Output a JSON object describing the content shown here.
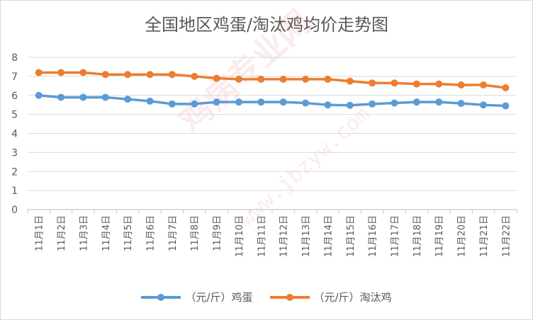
{
  "chart_data": {
    "type": "line",
    "title": "全国地区鸡蛋/淘汰鸡均价走势图",
    "categories": [
      "11月1日",
      "11月2日",
      "11月3日",
      "11月4日",
      "11月5日",
      "11月6日",
      "11月7日",
      "11月8日",
      "11月9日",
      "11月10日",
      "11月11日",
      "11月12日",
      "11月13日",
      "11月14日",
      "11月15日",
      "11月16日",
      "11月17日",
      "11月18日",
      "11月19日",
      "11月20日",
      "11月21日",
      "11月22日"
    ],
    "series": [
      {
        "name": "（元/斤）鸡蛋",
        "color": "#5b9bd5",
        "values": [
          6.0,
          5.9,
          5.9,
          5.9,
          5.8,
          5.7,
          5.55,
          5.55,
          5.65,
          5.65,
          5.65,
          5.65,
          5.6,
          5.5,
          5.48,
          5.55,
          5.6,
          5.65,
          5.65,
          5.58,
          5.5,
          5.45
        ]
      },
      {
        "name": "（元/斤）淘汰鸡",
        "color": "#ed7d31",
        "values": [
          7.2,
          7.2,
          7.2,
          7.1,
          7.1,
          7.1,
          7.1,
          7.0,
          6.9,
          6.85,
          6.85,
          6.85,
          6.85,
          6.85,
          6.75,
          6.65,
          6.65,
          6.6,
          6.6,
          6.55,
          6.55,
          6.4
        ]
      }
    ],
    "ylim": [
      0,
      8
    ],
    "yticks": [
      "0",
      "1",
      "2",
      "3",
      "4",
      "5",
      "6",
      "7",
      "8"
    ],
    "grid": true,
    "legend": "bottom"
  },
  "watermark": {
    "text": "鸡病专业网",
    "url": "www.jbzyw.com"
  }
}
